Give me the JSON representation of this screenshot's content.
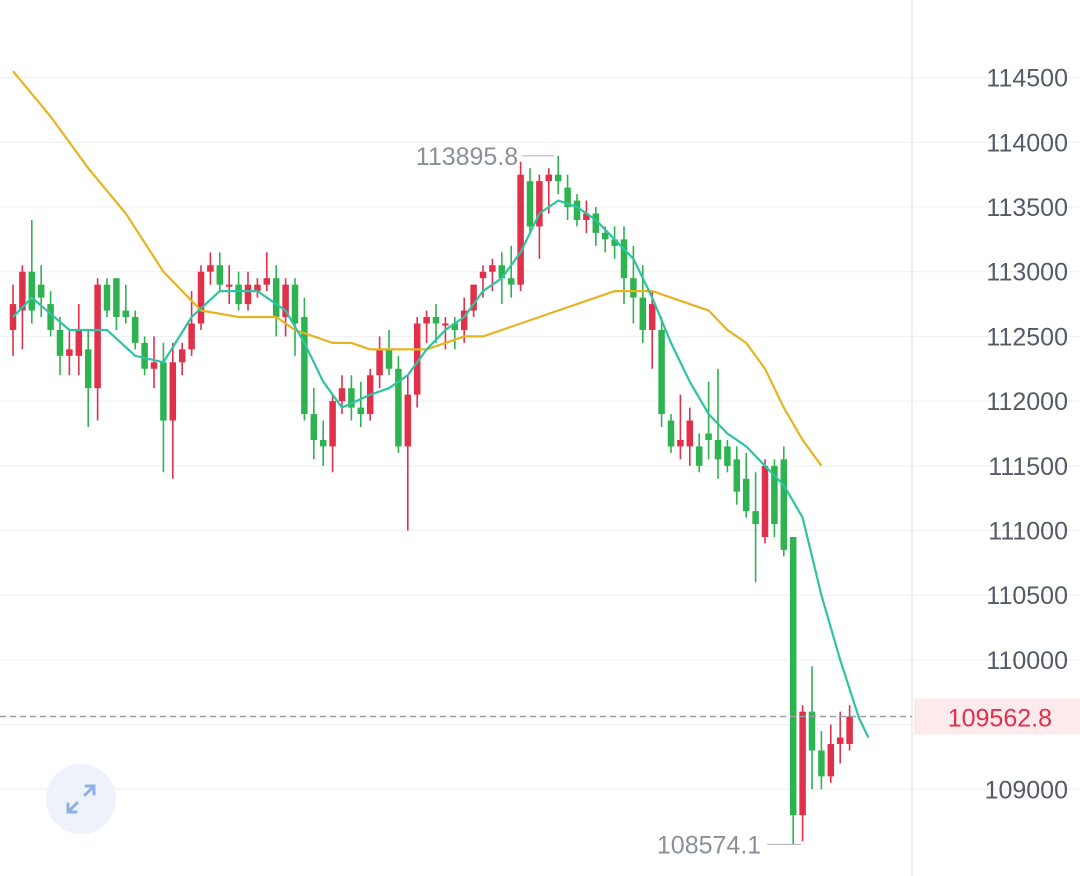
{
  "chart_data": {
    "type": "candlestick",
    "y_ticks": [
      109000,
      109500,
      110000,
      110500,
      111000,
      111500,
      112000,
      112500,
      113000,
      113500,
      114000,
      114500
    ],
    "y_tick_labels": [
      "109000",
      "",
      "110000",
      "110500",
      "111000",
      "111500",
      "112000",
      "112500",
      "113000",
      "113500",
      "114000",
      "114500"
    ],
    "ylim": [
      108330,
      115100
    ],
    "high_label": "113895.8",
    "low_label": "108574.1",
    "last_price": 109562.8,
    "last_price_label": "109562.8",
    "colors": {
      "up": "#e0304a",
      "down": "#2eb351",
      "ma_fast": "#2ec4a0",
      "ma_slow": "#e6b422",
      "last_line": "#9a9ea6",
      "grid": "#efefef"
    },
    "candles": [
      [
        112550,
        112900,
        112350,
        112750
      ],
      [
        112700,
        113050,
        112400,
        113000
      ],
      [
        113000,
        113400,
        112600,
        112700
      ],
      [
        112900,
        113050,
        112650,
        112800
      ],
      [
        112750,
        112850,
        112500,
        112550
      ],
      [
        112550,
        112650,
        112200,
        112350
      ],
      [
        112350,
        112550,
        112200,
        112400
      ],
      [
        112350,
        112750,
        112200,
        112550
      ],
      [
        112400,
        112550,
        111800,
        112100
      ],
      [
        112100,
        112950,
        111850,
        112900
      ],
      [
        112900,
        112950,
        112650,
        112700
      ],
      [
        112950,
        112950,
        112550,
        112650
      ],
      [
        112700,
        112900,
        112600,
        112650
      ],
      [
        112650,
        112700,
        112400,
        112450
      ],
      [
        112450,
        112500,
        112200,
        112250
      ],
      [
        112250,
        112500,
        112100,
        112300
      ],
      [
        112300,
        112450,
        111450,
        111850
      ],
      [
        111850,
        112450,
        111400,
        112300
      ],
      [
        112300,
        112450,
        112200,
        112400
      ],
      [
        112400,
        112850,
        112350,
        112600
      ],
      [
        112600,
        113050,
        112550,
        113000
      ],
      [
        113000,
        113150,
        112900,
        113050
      ],
      [
        113050,
        113150,
        112850,
        112900
      ],
      [
        112900,
        113050,
        112750,
        112900
      ],
      [
        112900,
        113000,
        112700,
        112750
      ],
      [
        112750,
        113000,
        112700,
        112900
      ],
      [
        112850,
        112950,
        112800,
        112900
      ],
      [
        112900,
        113150,
        112850,
        112950
      ],
      [
        112950,
        113050,
        112500,
        112650
      ],
      [
        112650,
        112950,
        112500,
        112900
      ],
      [
        112900,
        112950,
        112350,
        112600
      ],
      [
        112650,
        112800,
        111850,
        111900
      ],
      [
        111900,
        112100,
        111550,
        111700
      ],
      [
        111700,
        111850,
        111500,
        111650
      ],
      [
        111650,
        112050,
        111450,
        112000
      ],
      [
        112000,
        112200,
        111900,
        112100
      ],
      [
        112100,
        112200,
        111850,
        111950
      ],
      [
        111950,
        112150,
        111800,
        111900
      ],
      [
        111900,
        112250,
        111850,
        112200
      ],
      [
        112200,
        112500,
        112100,
        112400
      ],
      [
        112400,
        112550,
        112200,
        112250
      ],
      [
        112250,
        112350,
        111600,
        111650
      ],
      [
        111650,
        112200,
        111000,
        112050
      ],
      [
        112050,
        112650,
        111950,
        112600
      ],
      [
        112600,
        112700,
        112450,
        112650
      ],
      [
        112650,
        112750,
        112450,
        112600
      ],
      [
        112600,
        112650,
        112400,
        112600
      ],
      [
        112600,
        112650,
        112400,
        112550
      ],
      [
        112550,
        112800,
        112450,
        112700
      ],
      [
        112700,
        112900,
        112650,
        112900
      ],
      [
        112950,
        113050,
        112800,
        113000
      ],
      [
        113000,
        113100,
        112850,
        113050
      ],
      [
        113050,
        113150,
        112750,
        112950
      ],
      [
        112950,
        113200,
        112800,
        112900
      ],
      [
        112900,
        113850,
        112850,
        113750
      ],
      [
        113700,
        113800,
        113300,
        113350
      ],
      [
        113350,
        113750,
        113100,
        113700
      ],
      [
        113700,
        113800,
        113450,
        113750
      ],
      [
        113750,
        113895.8,
        113600,
        113700
      ],
      [
        113650,
        113750,
        113400,
        113500
      ],
      [
        113550,
        113600,
        113350,
        113400
      ],
      [
        113400,
        113550,
        113300,
        113450
      ],
      [
        113450,
        113500,
        113200,
        113300
      ],
      [
        113300,
        113350,
        113150,
        113250
      ],
      [
        113250,
        113350,
        113100,
        113200
      ],
      [
        113250,
        113350,
        112750,
        112950
      ],
      [
        112950,
        113200,
        112600,
        112800
      ],
      [
        112800,
        113050,
        112450,
        112550
      ],
      [
        112550,
        112850,
        112250,
        112750
      ],
      [
        112550,
        112650,
        111800,
        111900
      ],
      [
        111850,
        111900,
        111600,
        111650
      ],
      [
        111650,
        112050,
        111550,
        111700
      ],
      [
        111650,
        111950,
        111500,
        111850
      ],
      [
        111650,
        111750,
        111450,
        111500
      ],
      [
        111750,
        112150,
        111550,
        111700
      ],
      [
        111700,
        112250,
        111400,
        111550
      ],
      [
        111650,
        111700,
        111450,
        111500
      ],
      [
        111550,
        111650,
        111200,
        111300
      ],
      [
        111400,
        111600,
        111100,
        111150
      ],
      [
        111150,
        111450,
        110600,
        111050
      ],
      [
        110950,
        111550,
        110900,
        111500
      ],
      [
        111500,
        111550,
        110950,
        111050
      ],
      [
        111550,
        111650,
        110800,
        110850
      ],
      [
        110950,
        110950,
        108574.1,
        108800
      ],
      [
        108800,
        109650,
        108600,
        109600
      ],
      [
        109600,
        109950,
        109000,
        109300
      ],
      [
        109300,
        109450,
        109000,
        109100
      ],
      [
        109100,
        109500,
        109050,
        109350
      ],
      [
        109350,
        109600,
        109200,
        109400
      ],
      [
        109350,
        109650,
        109300,
        109562.8
      ]
    ],
    "ma_fast": [
      [
        0,
        112650
      ],
      [
        2,
        112800
      ],
      [
        6,
        112550
      ],
      [
        10,
        112550
      ],
      [
        13,
        112350
      ],
      [
        16,
        112300
      ],
      [
        19,
        112650
      ],
      [
        22,
        112850
      ],
      [
        26,
        112850
      ],
      [
        29,
        112700
      ],
      [
        31,
        112450
      ],
      [
        33,
        112150
      ],
      [
        35,
        111950
      ],
      [
        38,
        112050
      ],
      [
        40,
        112100
      ],
      [
        42,
        112200
      ],
      [
        44,
        112400
      ],
      [
        46,
        112550
      ],
      [
        48,
        112650
      ],
      [
        50,
        112850
      ],
      [
        52,
        112950
      ],
      [
        54,
        113150
      ],
      [
        56,
        113450
      ],
      [
        58,
        113550
      ],
      [
        60,
        113500
      ],
      [
        62,
        113400
      ],
      [
        64,
        113250
      ],
      [
        66,
        113100
      ],
      [
        68,
        112800
      ],
      [
        70,
        112450
      ],
      [
        72,
        112150
      ],
      [
        74,
        111900
      ],
      [
        76,
        111750
      ],
      [
        78,
        111650
      ],
      [
        80,
        111500
      ],
      [
        82,
        111350
      ],
      [
        84,
        111100
      ],
      [
        86,
        110500
      ],
      [
        88,
        110000
      ],
      [
        90,
        109550
      ],
      [
        91,
        109400
      ]
    ],
    "ma_slow": [
      [
        0,
        114550
      ],
      [
        4,
        114200
      ],
      [
        8,
        113800
      ],
      [
        12,
        113450
      ],
      [
        16,
        113000
      ],
      [
        20,
        112700
      ],
      [
        24,
        112650
      ],
      [
        28,
        112650
      ],
      [
        30,
        112550
      ],
      [
        32,
        112500
      ],
      [
        34,
        112450
      ],
      [
        36,
        112450
      ],
      [
        38,
        112400
      ],
      [
        40,
        112400
      ],
      [
        42,
        112400
      ],
      [
        44,
        112400
      ],
      [
        46,
        112450
      ],
      [
        48,
        112500
      ],
      [
        50,
        112500
      ],
      [
        52,
        112550
      ],
      [
        54,
        112600
      ],
      [
        56,
        112650
      ],
      [
        58,
        112700
      ],
      [
        60,
        112750
      ],
      [
        62,
        112800
      ],
      [
        64,
        112850
      ],
      [
        66,
        112850
      ],
      [
        68,
        112850
      ],
      [
        70,
        112800
      ],
      [
        72,
        112750
      ],
      [
        74,
        112700
      ],
      [
        76,
        112550
      ],
      [
        78,
        112450
      ],
      [
        80,
        112250
      ],
      [
        82,
        111950
      ],
      [
        84,
        111700
      ],
      [
        86,
        111500
      ]
    ]
  }
}
